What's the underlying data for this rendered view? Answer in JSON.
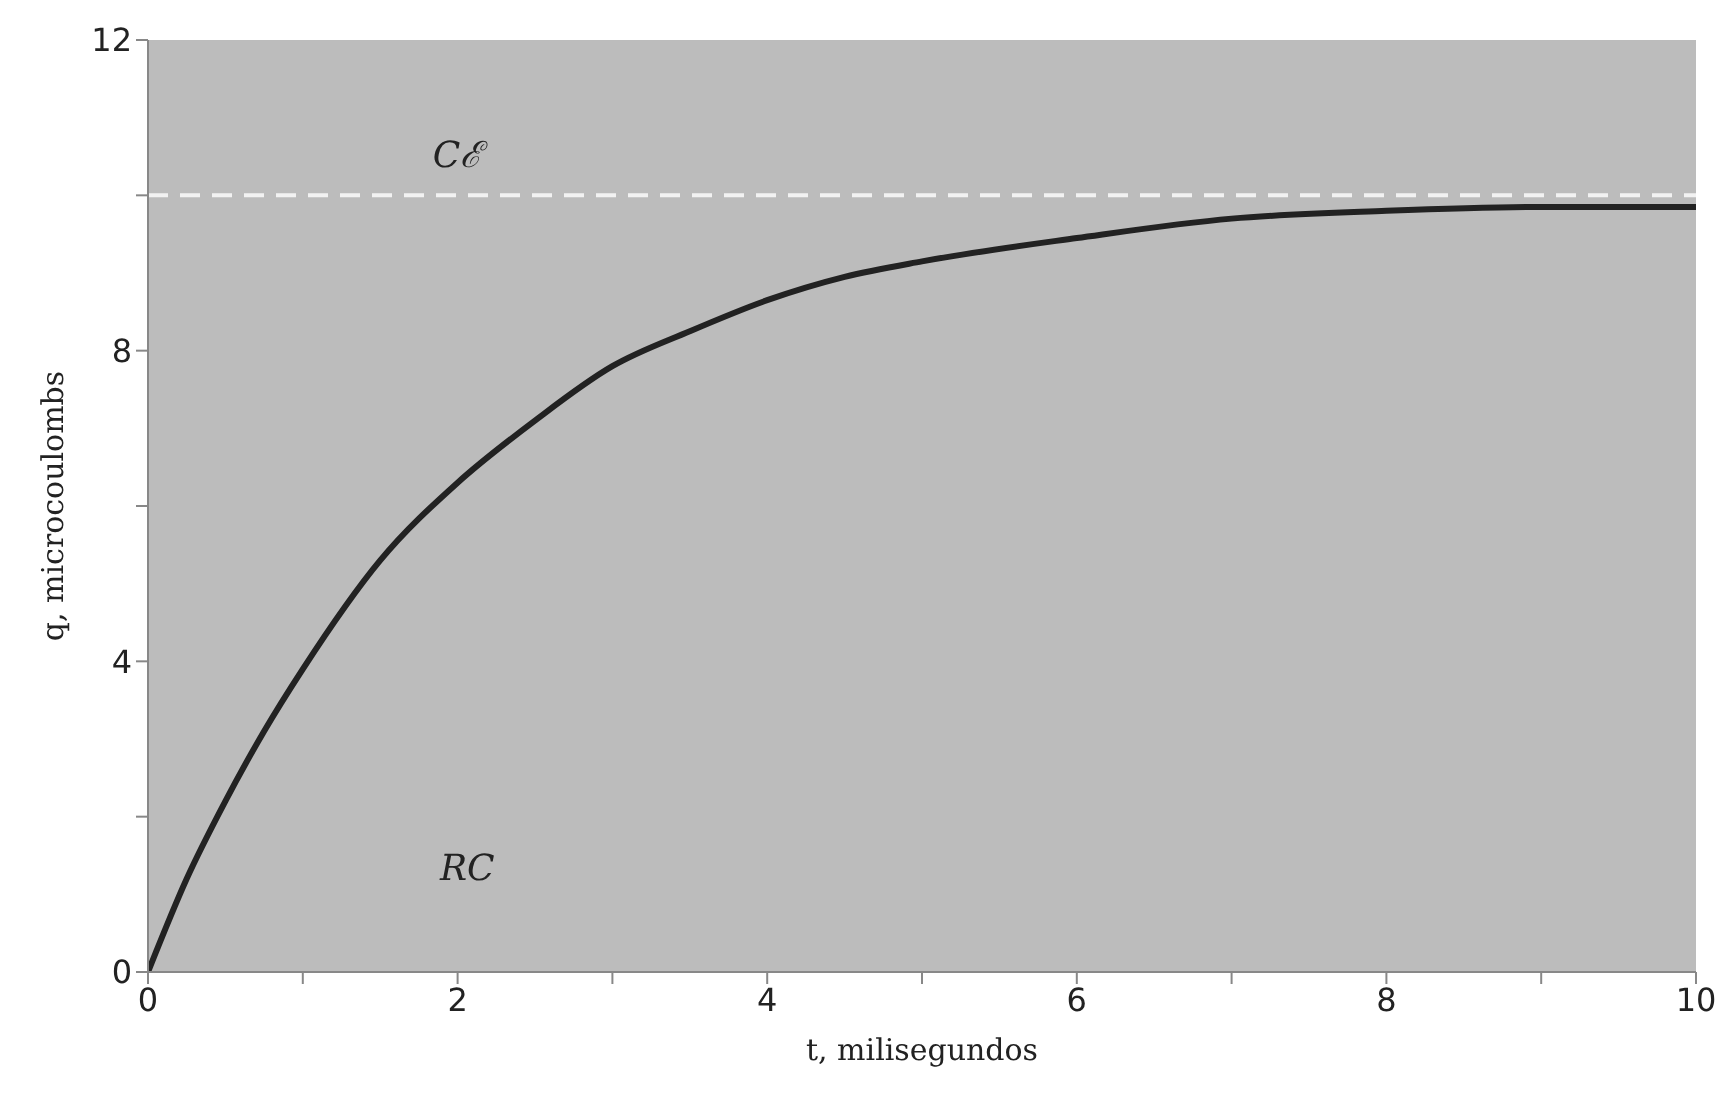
{
  "chart_data": {
    "type": "line",
    "xlabel": "t, milisegundos",
    "ylabel": "q, microcoulombs",
    "x": [
      0,
      0.25,
      0.5,
      0.75,
      1,
      1.5,
      2,
      2.5,
      3,
      3.5,
      4,
      4.5,
      5,
      6,
      7,
      8,
      9,
      10
    ],
    "series": [
      {
        "color": "#222222",
        "values": [
          0,
          1.2,
          2.2,
          3.1,
          3.9,
          5.3,
          6.3,
          7.1,
          7.8,
          8.25,
          8.65,
          8.95,
          9.15,
          9.45,
          9.7,
          9.8,
          9.85,
          9.85
        ]
      }
    ],
    "xlim": [
      0,
      10
    ],
    "ylim": [
      0,
      12
    ],
    "xticks": [
      0,
      {
        "value": 1,
        "label": null
      },
      2,
      {
        "value": 3,
        "label": null
      },
      4,
      {
        "value": 5,
        "label": null
      },
      6,
      {
        "value": 7,
        "label": null
      },
      8,
      {
        "value": 9,
        "label": null
      },
      10
    ],
    "yticks": [
      0,
      {
        "value": 2,
        "label": null
      },
      4,
      {
        "value": 6,
        "label": null
      },
      8,
      {
        "value": 10,
        "label": null
      },
      {
        "value": 12,
        "label": "12"
      }
    ],
    "ref_lines": [
      {
        "axis": "y",
        "value": 10,
        "label": "Cℰ",
        "color": "#f2f2f2",
        "line_style": "dashed"
      }
    ],
    "annotations": [
      "RC"
    ],
    "grid": false,
    "legend": false,
    "marker": "none",
    "line_style": "solid"
  }
}
